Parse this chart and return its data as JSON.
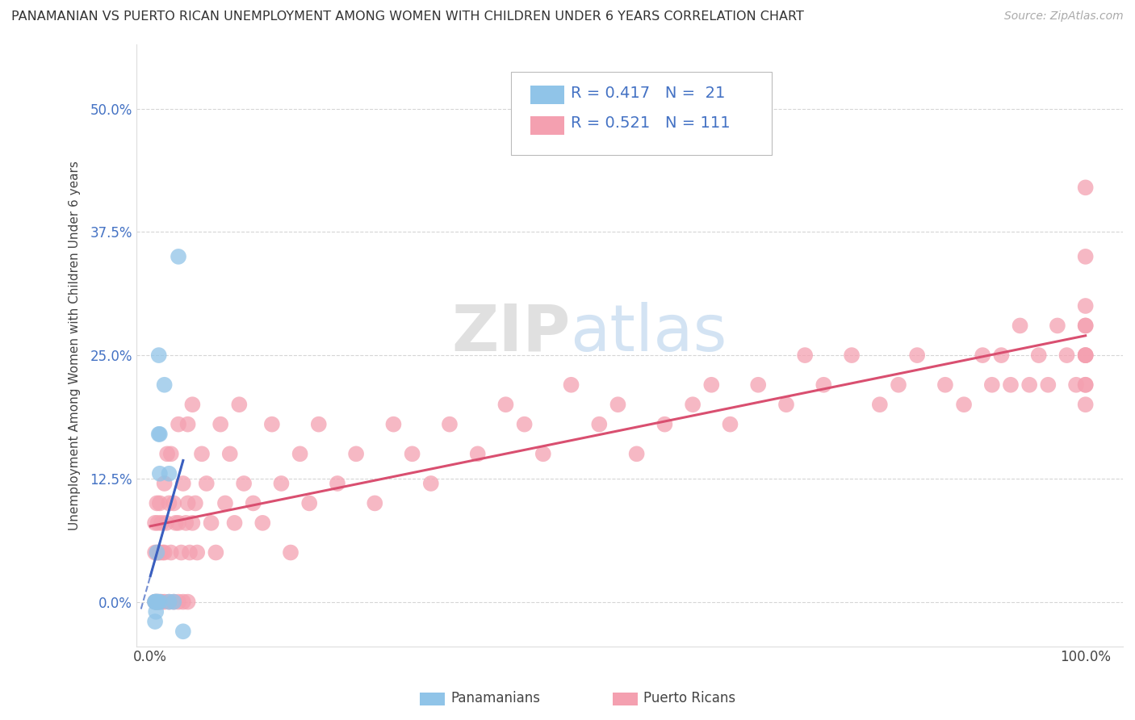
{
  "title": "PANAMANIAN VS PUERTO RICAN UNEMPLOYMENT AMONG WOMEN WITH CHILDREN UNDER 6 YEARS CORRELATION CHART",
  "source": "Source: ZipAtlas.com",
  "ylabel": "Unemployment Among Women with Children Under 6 years",
  "ytick_labels": [
    "0.0%",
    "12.5%",
    "25.0%",
    "37.5%",
    "50.0%"
  ],
  "ytick_values": [
    0.0,
    0.125,
    0.25,
    0.375,
    0.5
  ],
  "xtick_values": [
    0.0,
    1.0
  ],
  "xtick_labels": [
    "0.0%",
    "100.0%"
  ],
  "xlim": [
    -0.015,
    1.04
  ],
  "ylim": [
    -0.045,
    0.565
  ],
  "panamanian_color": "#90C4E8",
  "puerto_rican_color": "#F4A0B0",
  "panamanian_line_color": "#3A5FBF",
  "puerto_rican_line_color": "#D94F70",
  "legend_R_panama": "0.417",
  "legend_N_panama": "21",
  "legend_R_puerto": "0.521",
  "legend_N_puerto": "111",
  "watermark_ZIP": "ZIP",
  "watermark_atlas": "atlas",
  "pan_x": [
    0.005,
    0.005,
    0.005,
    0.006,
    0.006,
    0.007,
    0.007,
    0.007,
    0.008,
    0.008,
    0.009,
    0.009,
    0.01,
    0.01,
    0.01,
    0.015,
    0.02,
    0.02,
    0.025,
    0.03,
    0.035
  ],
  "pan_y": [
    0.0,
    0.0,
    -0.02,
    -0.01,
    0.0,
    0.0,
    0.0,
    0.05,
    0.0,
    0.0,
    0.17,
    0.25,
    0.0,
    0.13,
    0.17,
    0.22,
    0.0,
    0.13,
    0.0,
    0.35,
    -0.03
  ],
  "pr_x": [
    0.005,
    0.005,
    0.005,
    0.006,
    0.007,
    0.007,
    0.008,
    0.008,
    0.009,
    0.01,
    0.01,
    0.01,
    0.012,
    0.012,
    0.013,
    0.015,
    0.015,
    0.015,
    0.017,
    0.018,
    0.02,
    0.02,
    0.022,
    0.022,
    0.025,
    0.025,
    0.027,
    0.03,
    0.03,
    0.03,
    0.033,
    0.035,
    0.035,
    0.038,
    0.04,
    0.04,
    0.04,
    0.042,
    0.045,
    0.045,
    0.048,
    0.05,
    0.055,
    0.06,
    0.065,
    0.07,
    0.075,
    0.08,
    0.085,
    0.09,
    0.095,
    0.1,
    0.11,
    0.12,
    0.13,
    0.14,
    0.15,
    0.16,
    0.17,
    0.18,
    0.2,
    0.22,
    0.24,
    0.26,
    0.28,
    0.3,
    0.32,
    0.35,
    0.38,
    0.4,
    0.42,
    0.45,
    0.48,
    0.5,
    0.52,
    0.55,
    0.58,
    0.6,
    0.62,
    0.65,
    0.68,
    0.7,
    0.72,
    0.75,
    0.78,
    0.8,
    0.82,
    0.85,
    0.87,
    0.89,
    0.9,
    0.91,
    0.92,
    0.93,
    0.94,
    0.95,
    0.96,
    0.97,
    0.98,
    0.99,
    1.0,
    1.0,
    1.0,
    1.0,
    1.0,
    1.0,
    1.0,
    1.0,
    1.0,
    1.0,
    1.0
  ],
  "pr_y": [
    0.0,
    0.05,
    0.08,
    0.0,
    0.05,
    0.1,
    0.0,
    0.08,
    0.05,
    0.0,
    0.05,
    0.1,
    0.0,
    0.08,
    0.05,
    0.0,
    0.05,
    0.12,
    0.08,
    0.15,
    0.0,
    0.1,
    0.05,
    0.15,
    0.0,
    0.1,
    0.08,
    0.0,
    0.08,
    0.18,
    0.05,
    0.0,
    0.12,
    0.08,
    0.0,
    0.1,
    0.18,
    0.05,
    0.08,
    0.2,
    0.1,
    0.05,
    0.15,
    0.12,
    0.08,
    0.05,
    0.18,
    0.1,
    0.15,
    0.08,
    0.2,
    0.12,
    0.1,
    0.08,
    0.18,
    0.12,
    0.05,
    0.15,
    0.1,
    0.18,
    0.12,
    0.15,
    0.1,
    0.18,
    0.15,
    0.12,
    0.18,
    0.15,
    0.2,
    0.18,
    0.15,
    0.22,
    0.18,
    0.2,
    0.15,
    0.18,
    0.2,
    0.22,
    0.18,
    0.22,
    0.2,
    0.25,
    0.22,
    0.25,
    0.2,
    0.22,
    0.25,
    0.22,
    0.2,
    0.25,
    0.22,
    0.25,
    0.22,
    0.28,
    0.22,
    0.25,
    0.22,
    0.28,
    0.25,
    0.22,
    0.25,
    0.28,
    0.22,
    0.2,
    0.3,
    0.22,
    0.25,
    0.42,
    0.28,
    0.25,
    0.35
  ]
}
